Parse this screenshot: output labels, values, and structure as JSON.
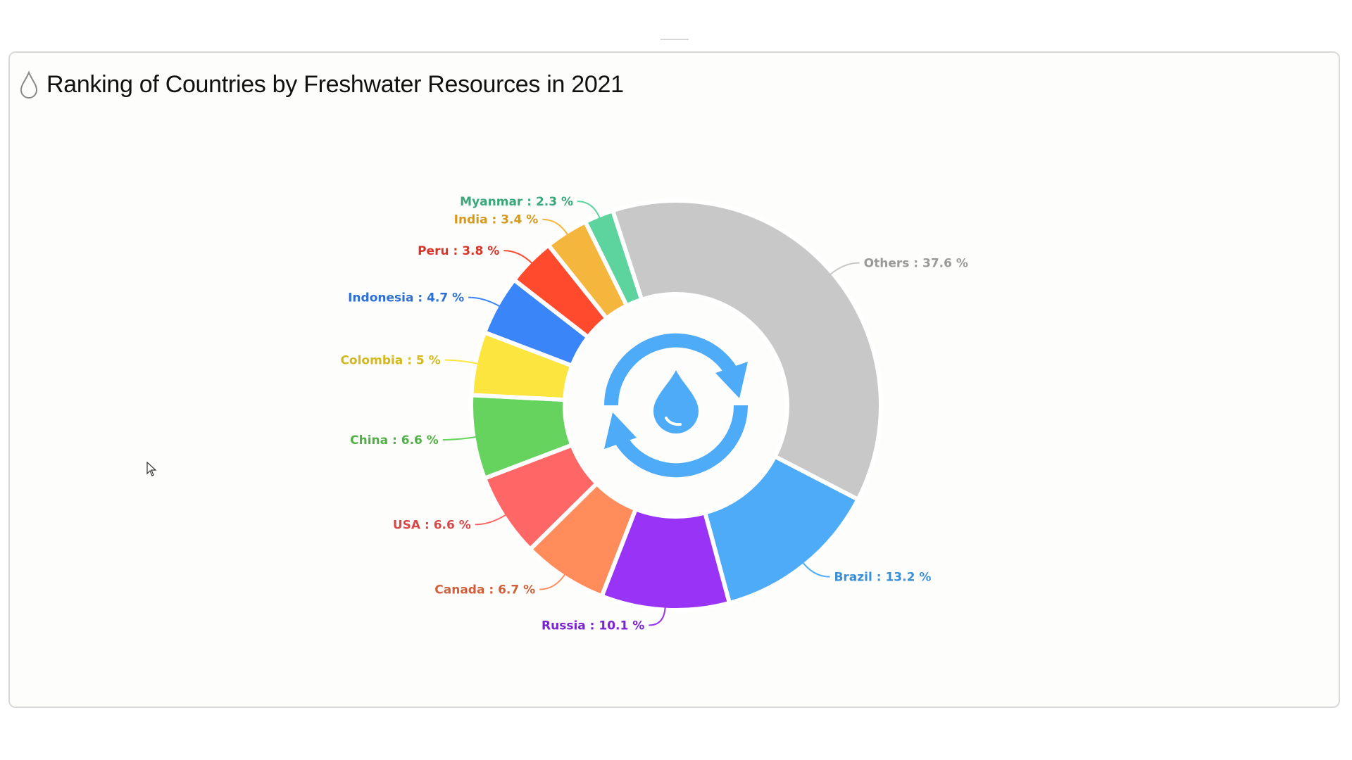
{
  "title": "Ranking of Countries by Freshwater Resources in 2021",
  "title_icon": "water-drop-outline-icon",
  "center_icon": "water-cycle-icon",
  "chart_data": {
    "type": "pie",
    "variant": "donut",
    "title": "Ranking of Countries by Freshwater Resources in 2021",
    "unit": "%",
    "separator": " : ",
    "slices": [
      {
        "name": "Others",
        "value": 37.6,
        "color": "#c8c8c8",
        "label_color": "#9a9a9a"
      },
      {
        "name": "Brazil",
        "value": 13.2,
        "color": "#4dabf7",
        "label_color": "#3a8fd6"
      },
      {
        "name": "Russia",
        "value": 10.1,
        "color": "#9933f5",
        "label_color": "#7a22d4"
      },
      {
        "name": "Canada",
        "value": 6.7,
        "color": "#ff8c5a",
        "label_color": "#d0603c"
      },
      {
        "name": "USA",
        "value": 6.6,
        "color": "#ff6666",
        "label_color": "#d84848"
      },
      {
        "name": "China",
        "value": 6.6,
        "color": "#66d35e",
        "label_color": "#4fb043"
      },
      {
        "name": "Colombia",
        "value": 5,
        "color": "#fde53f",
        "label_color": "#d4b820"
      },
      {
        "name": "Indonesia",
        "value": 4.7,
        "color": "#3a85f7",
        "label_color": "#2c6fd6"
      },
      {
        "name": "Peru",
        "value": 3.8,
        "color": "#ff4a2e",
        "label_color": "#d9342a"
      },
      {
        "name": "India",
        "value": 3.4,
        "color": "#f4b63c",
        "label_color": "#d49a1e"
      },
      {
        "name": "Myanmar",
        "value": 2.3,
        "color": "#5dd39e",
        "label_color": "#3aa67a"
      }
    ]
  }
}
